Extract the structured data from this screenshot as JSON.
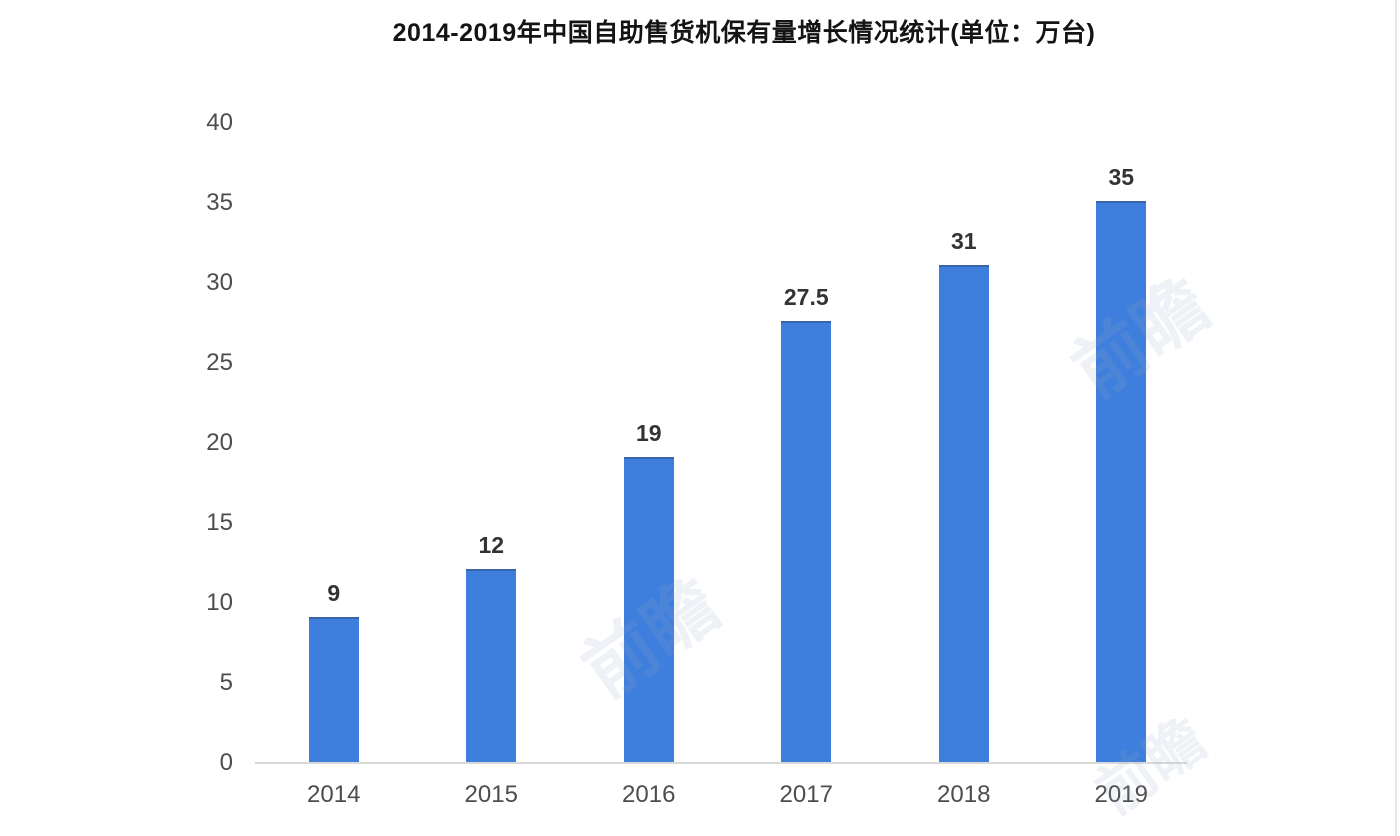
{
  "page": {
    "background": "#ffffff"
  },
  "chart_data": {
    "type": "bar",
    "title": "2014-2019年中国自助售货机保有量增长情况统计(单位：万台)",
    "categories": [
      "2014",
      "2015",
      "2016",
      "2017",
      "2018",
      "2019"
    ],
    "values": [
      9,
      12,
      19,
      27.5,
      31,
      35
    ],
    "value_labels": [
      "9",
      "12",
      "19",
      "27.5",
      "31",
      "35"
    ],
    "xlabel": "",
    "ylabel": "",
    "ylim": [
      0,
      40
    ],
    "yticks": [
      0,
      5,
      10,
      15,
      20,
      25,
      30,
      35,
      40
    ],
    "grid": false,
    "legend": "none",
    "bar_color": "#3e7edc",
    "axis_line_color": "#d9d9d9",
    "tick_label_color": "#4d4d4d",
    "value_label_color": "#333333",
    "title_color": "#141414"
  },
  "watermark": {
    "text": "前瞻"
  }
}
